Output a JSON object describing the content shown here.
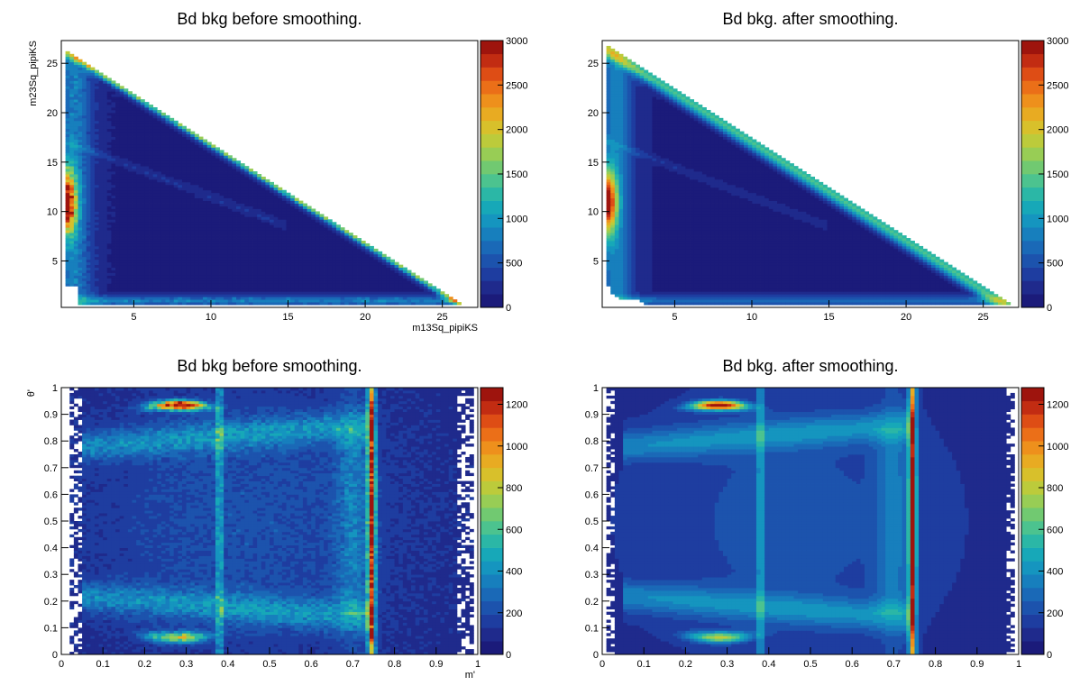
{
  "chart_data": [
    {
      "type": "heatmap",
      "title": "Bd bkg before smoothing.",
      "xlabel": "m13Sq_pipiKS",
      "ylabel": "m23Sq_pipiKS",
      "xlim": [
        0.3,
        27.3
      ],
      "ylim": [
        0.3,
        27.3
      ],
      "x_ticks": [
        5,
        10,
        15,
        20,
        25
      ],
      "y_ticks": [
        5,
        10,
        15,
        20,
        25
      ],
      "colorbar": {
        "range": [
          0,
          3000
        ],
        "ticks": [
          0,
          500,
          1000,
          1500,
          2000,
          2500,
          3000
        ]
      },
      "features": {
        "shape": "dalitz-triangle",
        "diagonal_band": {
          "from": [
            0.8,
            26.0
          ],
          "to": [
            26.2,
            1.0
          ],
          "peak_value": 1600
        },
        "left_edge_hotspot": {
          "x": 0.6,
          "y_range": [
            8,
            14
          ],
          "peak_value": 2700
        },
        "bottom_edge_band": {
          "y": 1.0,
          "x_range": [
            2,
            26
          ],
          "peak_value": 700
        },
        "background_value": 120
      }
    },
    {
      "type": "heatmap",
      "title": "Bd bkg. after smoothing.",
      "xlabel": "",
      "ylabel": "",
      "xlim": [
        0.3,
        27.3
      ],
      "ylim": [
        0.3,
        27.3
      ],
      "x_ticks": [
        5,
        10,
        15,
        20,
        25
      ],
      "y_ticks": [
        5,
        10,
        15,
        20,
        25
      ],
      "colorbar": {
        "range": [
          0,
          3000
        ],
        "ticks": [
          0,
          500,
          1000,
          1500,
          2000,
          2500,
          3000
        ]
      },
      "features": {
        "shape": "dalitz-curved",
        "diagonal_band": {
          "from": [
            0.8,
            26.0
          ],
          "to": [
            26.2,
            1.0
          ],
          "peak_value": 1300
        },
        "left_edge_hotspot": {
          "x": 0.6,
          "y_range": [
            8,
            14
          ],
          "peak_value": 2500
        },
        "bottom_edge_band": {
          "y": 1.0,
          "x_range": [
            2,
            26
          ],
          "peak_value": 600
        },
        "background_value": 120
      }
    },
    {
      "type": "heatmap",
      "title": "Bd bkg before smoothing.",
      "xlabel": "m'",
      "ylabel": "θ'",
      "xlim": [
        0,
        1
      ],
      "ylim": [
        0,
        1
      ],
      "x_ticks": [
        0,
        0.1,
        0.2,
        0.3,
        0.4,
        0.5,
        0.6,
        0.7,
        0.8,
        0.9,
        1
      ],
      "y_ticks": [
        0,
        0.1,
        0.2,
        0.3,
        0.4,
        0.5,
        0.6,
        0.7,
        0.8,
        0.9,
        1
      ],
      "colorbar": {
        "range": [
          0,
          1280
        ],
        "ticks": [
          0,
          200,
          400,
          600,
          800,
          1000,
          1200
        ]
      },
      "features": {
        "vertical_band_strong": {
          "x": 0.745,
          "peak_value": 1150
        },
        "vertical_band_weak": {
          "x": 0.38,
          "peak_value": 450
        },
        "top_hotspot": {
          "x": 0.28,
          "y": 0.935,
          "peak_value": 1250
        },
        "bottom_hotspot": {
          "x": 0.28,
          "y": 0.065,
          "peak_value": 700
        },
        "background_value": 100
      }
    },
    {
      "type": "heatmap",
      "title": "Bd bkg. after smoothing.",
      "xlabel": "",
      "ylabel": "",
      "xlim": [
        0,
        1
      ],
      "ylim": [
        0,
        1
      ],
      "x_ticks": [
        0,
        0.1,
        0.2,
        0.3,
        0.4,
        0.5,
        0.6,
        0.7,
        0.8,
        0.9,
        1
      ],
      "y_ticks": [
        0,
        0.1,
        0.2,
        0.3,
        0.4,
        0.5,
        0.6,
        0.7,
        0.8,
        0.9,
        1
      ],
      "colorbar": {
        "range": [
          0,
          1280
        ],
        "ticks": [
          0,
          200,
          400,
          600,
          800,
          1000,
          1200
        ]
      },
      "features": {
        "vertical_band_strong": {
          "x": 0.745,
          "peak_value": 1100
        },
        "vertical_band_weak": {
          "x": 0.38,
          "peak_value": 400
        },
        "top_hotspot": {
          "x": 0.28,
          "y": 0.935,
          "peak_value": 1200
        },
        "bottom_hotspot": {
          "x": 0.28,
          "y": 0.065,
          "peak_value": 650
        },
        "background_value": 100
      }
    }
  ]
}
